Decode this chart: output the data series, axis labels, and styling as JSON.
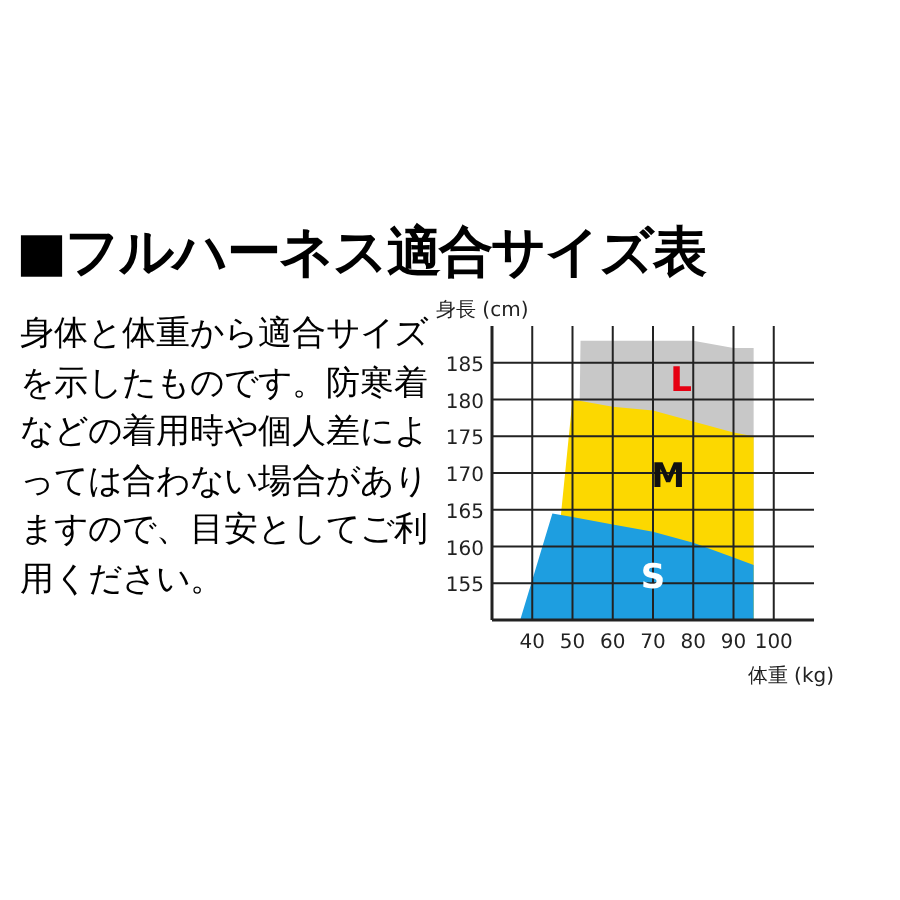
{
  "chart_data": {
    "type": "area",
    "title": "■フルハーネス適合サイズ表",
    "annotations": [
      "身体と体重から適合サイズを示したものです。防寒着などの着用時や個人差によっては合わない場合がありますので、目安としてご利用ください。"
    ],
    "xlabel": "体重 (kg)",
    "ylabel": "身長 (cm)",
    "xlim": [
      30,
      110
    ],
    "ylim": [
      150,
      190
    ],
    "xticks": [
      40,
      50,
      60,
      70,
      80,
      90,
      100
    ],
    "yticks": [
      155,
      160,
      165,
      170,
      175,
      180,
      185
    ],
    "grid": true,
    "series": [
      {
        "name": "L",
        "color": "#c8c8c8",
        "x": [
          51,
          52,
          60,
          70,
          80,
          90,
          95
        ],
        "values": [
          150,
          188,
          188,
          188,
          188,
          187,
          187
        ]
      },
      {
        "name": "M",
        "color": "#fcd800",
        "x": [
          44.5,
          50,
          60,
          70,
          80,
          90,
          95
        ],
        "values": [
          150,
          180,
          179,
          178.5,
          177,
          175.5,
          175
        ]
      },
      {
        "name": "S",
        "color": "#1e9ee0",
        "x": [
          37,
          45,
          50,
          60,
          70,
          80,
          90,
          95
        ],
        "values": [
          150,
          164.5,
          164,
          163,
          162,
          160.5,
          158.5,
          157.5
        ]
      }
    ]
  }
}
